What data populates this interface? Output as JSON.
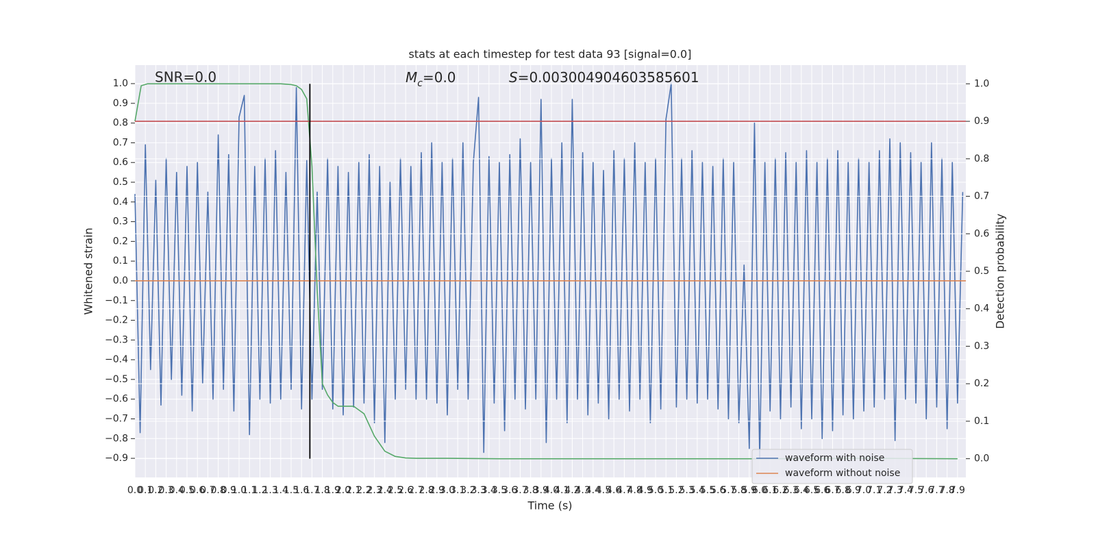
{
  "chart_data": {
    "type": "line",
    "title": "stats at each timestep for test data 93 [signal=0.0]",
    "xlabel": "Time (s)",
    "ylabel": "Whitened strain",
    "y2label": "Detection probability",
    "annotations": {
      "snr": "SNR=0.0",
      "mc": {
        "symbol": "M",
        "subscript": "c",
        "text": "=0.0"
      },
      "s": {
        "symbol": "S",
        "text": "=0.003004904603585601"
      }
    },
    "xlim": [
      0,
      7.98
    ],
    "ylim": [
      -0.997,
      1.094
    ],
    "y2lim": [
      -0.05,
      1.05
    ],
    "grid": true,
    "legend": "lower right",
    "xticks": [
      {
        "value": 0,
        "label": "0.0"
      },
      0.1,
      0.2,
      0.3,
      0.4,
      0.5,
      0.6,
      0.7,
      0.8,
      0.9,
      {
        "value": 1,
        "label": "1.0"
      },
      1.1,
      1.2,
      1.3,
      1.4,
      1.5,
      1.6,
      1.7,
      1.8,
      1.9,
      {
        "value": 2,
        "label": "2.0"
      },
      2.1,
      2.2,
      2.3,
      2.4,
      2.5,
      2.6,
      2.7,
      2.8,
      2.9,
      {
        "value": 3,
        "label": "3.0"
      },
      3.1,
      3.2,
      3.3,
      3.4,
      3.5,
      3.6,
      3.7,
      3.8,
      3.9,
      {
        "value": 4,
        "label": "4.0"
      },
      4.1,
      4.2,
      4.3,
      4.4,
      4.5,
      4.6,
      4.7,
      4.8,
      4.9,
      {
        "value": 5,
        "label": "5.0"
      },
      5.1,
      5.2,
      5.3,
      5.4,
      5.5,
      5.6,
      5.7,
      5.8,
      5.9,
      {
        "value": 6,
        "label": "6.0"
      },
      6.1,
      6.2,
      6.3,
      6.4,
      6.5,
      6.6,
      6.7,
      6.8,
      6.9,
      {
        "value": 7,
        "label": "7.0"
      },
      7.1,
      7.2,
      7.3,
      7.4,
      7.5,
      7.6,
      7.7,
      7.8,
      7.9
    ],
    "yticks": [
      {
        "value": -0.9,
        "label": "−0.9"
      },
      {
        "value": -0.8,
        "label": "−0.8"
      },
      {
        "value": -0.7,
        "label": "−0.7"
      },
      {
        "value": -0.6,
        "label": "−0.6"
      },
      {
        "value": -0.5,
        "label": "−0.5"
      },
      {
        "value": -0.4,
        "label": "−0.4"
      },
      {
        "value": -0.3,
        "label": "−0.3"
      },
      {
        "value": -0.2,
        "label": "−0.2"
      },
      {
        "value": -0.1,
        "label": "−0.1"
      },
      {
        "value": 0,
        "label": "0.0"
      },
      0.1,
      0.2,
      0.3,
      0.4,
      0.5,
      0.6,
      0.7,
      0.8,
      0.9,
      {
        "value": 1,
        "label": "1.0"
      }
    ],
    "y2ticks": [
      {
        "value": 0,
        "label": "0.0"
      },
      0.1,
      0.2,
      0.3,
      0.4,
      0.5,
      0.6,
      0.7,
      0.8,
      0.9,
      {
        "value": 1,
        "label": "1.0"
      }
    ],
    "threshold": 0.9,
    "threshold_color": "#c44e52",
    "vline": 1.68,
    "vline_color": "#000000",
    "series": [
      {
        "name": "waveform with noise",
        "color": "#4c72b0",
        "x": [
          0,
          0.05,
          0.1,
          0.15,
          0.2,
          0.25,
          0.3,
          0.35,
          0.4,
          0.45,
          0.5,
          0.55,
          0.6,
          0.65,
          0.7,
          0.75,
          0.8,
          0.85,
          0.9,
          0.95,
          1,
          1.05,
          1.1,
          1.15,
          1.2,
          1.25,
          1.3,
          1.35,
          1.4,
          1.45,
          1.5,
          1.55,
          1.6,
          1.65,
          1.7,
          1.75,
          1.8,
          1.85,
          1.9,
          1.95,
          2,
          2.05,
          2.1,
          2.15,
          2.2,
          2.25,
          2.3,
          2.35,
          2.4,
          2.45,
          2.5,
          2.55,
          2.6,
          2.65,
          2.7,
          2.75,
          2.8,
          2.85,
          2.9,
          2.95,
          3,
          3.05,
          3.1,
          3.15,
          3.2,
          3.25,
          3.3,
          3.35,
          3.4,
          3.45,
          3.5,
          3.55,
          3.6,
          3.65,
          3.7,
          3.75,
          3.8,
          3.85,
          3.9,
          3.95,
          4,
          4.05,
          4.1,
          4.15,
          4.2,
          4.25,
          4.3,
          4.35,
          4.4,
          4.45,
          4.5,
          4.55,
          4.6,
          4.65,
          4.7,
          4.75,
          4.8,
          4.85,
          4.9,
          4.95,
          5,
          5.05,
          5.1,
          5.15,
          5.2,
          5.25,
          5.3,
          5.35,
          5.4,
          5.45,
          5.5,
          5.55,
          5.6,
          5.65,
          5.7,
          5.75,
          5.8,
          5.85,
          5.9,
          5.95,
          6,
          6.05,
          6.1,
          6.15,
          6.2,
          6.25,
          6.3,
          6.35,
          6.4,
          6.45,
          6.5,
          6.55,
          6.6,
          6.65,
          6.7,
          6.75,
          6.8,
          6.85,
          6.9,
          6.95,
          7,
          7.05,
          7.1,
          7.15,
          7.2,
          7.25,
          7.3,
          7.35,
          7.4,
          7.45,
          7.5,
          7.55,
          7.6,
          7.65,
          7.7,
          7.75,
          7.8,
          7.85,
          7.9,
          7.95
        ],
        "values": [
          0.44,
          -0.77,
          0.69,
          -0.45,
          0.51,
          -0.63,
          0.62,
          -0.5,
          0.55,
          -0.58,
          0.58,
          -0.66,
          0.6,
          -0.52,
          0.45,
          -0.6,
          0.74,
          -0.55,
          0.64,
          -0.66,
          0.83,
          0.94,
          -0.78,
          0.58,
          -0.6,
          0.62,
          -0.62,
          0.66,
          -0.6,
          0.55,
          -0.55,
          0.98,
          -0.65,
          0.61,
          -0.6,
          0.45,
          -0.55,
          0.62,
          -0.65,
          0.58,
          -0.68,
          0.55,
          -0.64,
          0.6,
          -0.62,
          0.64,
          -0.72,
          0.58,
          -0.82,
          0.5,
          -0.6,
          0.62,
          -0.55,
          0.58,
          -0.6,
          0.65,
          -0.6,
          0.7,
          -0.62,
          0.6,
          -0.68,
          0.62,
          -0.55,
          0.7,
          -0.6,
          0.6,
          0.93,
          -0.87,
          0.63,
          -0.62,
          0.6,
          -0.76,
          0.64,
          -0.6,
          0.72,
          -0.65,
          0.6,
          -0.6,
          0.92,
          -0.82,
          0.62,
          -0.6,
          0.7,
          -0.72,
          0.92,
          -0.6,
          0.65,
          -0.68,
          0.6,
          -0.62,
          0.56,
          -0.7,
          0.66,
          -0.6,
          0.62,
          -0.66,
          0.7,
          -0.6,
          0.6,
          -0.72,
          0.62,
          -0.65,
          0.82,
          1.0,
          -0.64,
          0.62,
          -0.6,
          0.66,
          -0.62,
          0.6,
          -0.6,
          0.58,
          -0.65,
          0.62,
          -0.7,
          0.6,
          -0.72,
          0.08,
          -0.85,
          0.8,
          -0.9,
          0.6,
          -0.66,
          0.62,
          -0.7,
          0.65,
          -0.64,
          0.6,
          -0.75,
          0.66,
          -0.7,
          0.6,
          -0.8,
          0.62,
          -0.76,
          0.66,
          -0.68,
          0.6,
          -0.7,
          0.62,
          -0.66,
          0.6,
          -0.64,
          0.66,
          -0.6,
          0.72,
          -0.81,
          0.7,
          -0.6,
          0.65,
          -0.62,
          0.6,
          -0.7,
          0.7,
          -0.64,
          0.62,
          -0.75,
          0.6,
          -0.62,
          0.45
        ]
      },
      {
        "name": "waveform without noise",
        "color": "#dd8452",
        "x": [
          0,
          7.98
        ],
        "values": [
          0,
          0
        ]
      },
      {
        "color": "#55a868",
        "axis": "y2",
        "x": [
          0,
          0.06,
          0.12,
          0.3,
          0.6,
          1.0,
          1.4,
          1.5,
          1.55,
          1.6,
          1.65,
          1.7,
          1.75,
          1.8,
          1.85,
          1.9,
          1.95,
          2.0,
          2.1,
          2.15,
          2.2,
          2.25,
          2.3,
          2.35,
          2.4,
          2.5,
          2.6,
          2.7,
          3.0,
          3.5,
          5.0,
          6.0,
          7.0,
          7.9
        ],
        "values": [
          0.9,
          0.995,
          1.0,
          1.0,
          1.0,
          1.0,
          1.0,
          0.998,
          0.995,
          0.985,
          0.96,
          0.78,
          0.45,
          0.2,
          0.17,
          0.15,
          0.14,
          0.14,
          0.14,
          0.13,
          0.12,
          0.09,
          0.06,
          0.04,
          0.02,
          0.006,
          0.002,
          0.001,
          0.001,
          0.0,
          0.0,
          0.0,
          0.001,
          0.0
        ]
      }
    ]
  }
}
